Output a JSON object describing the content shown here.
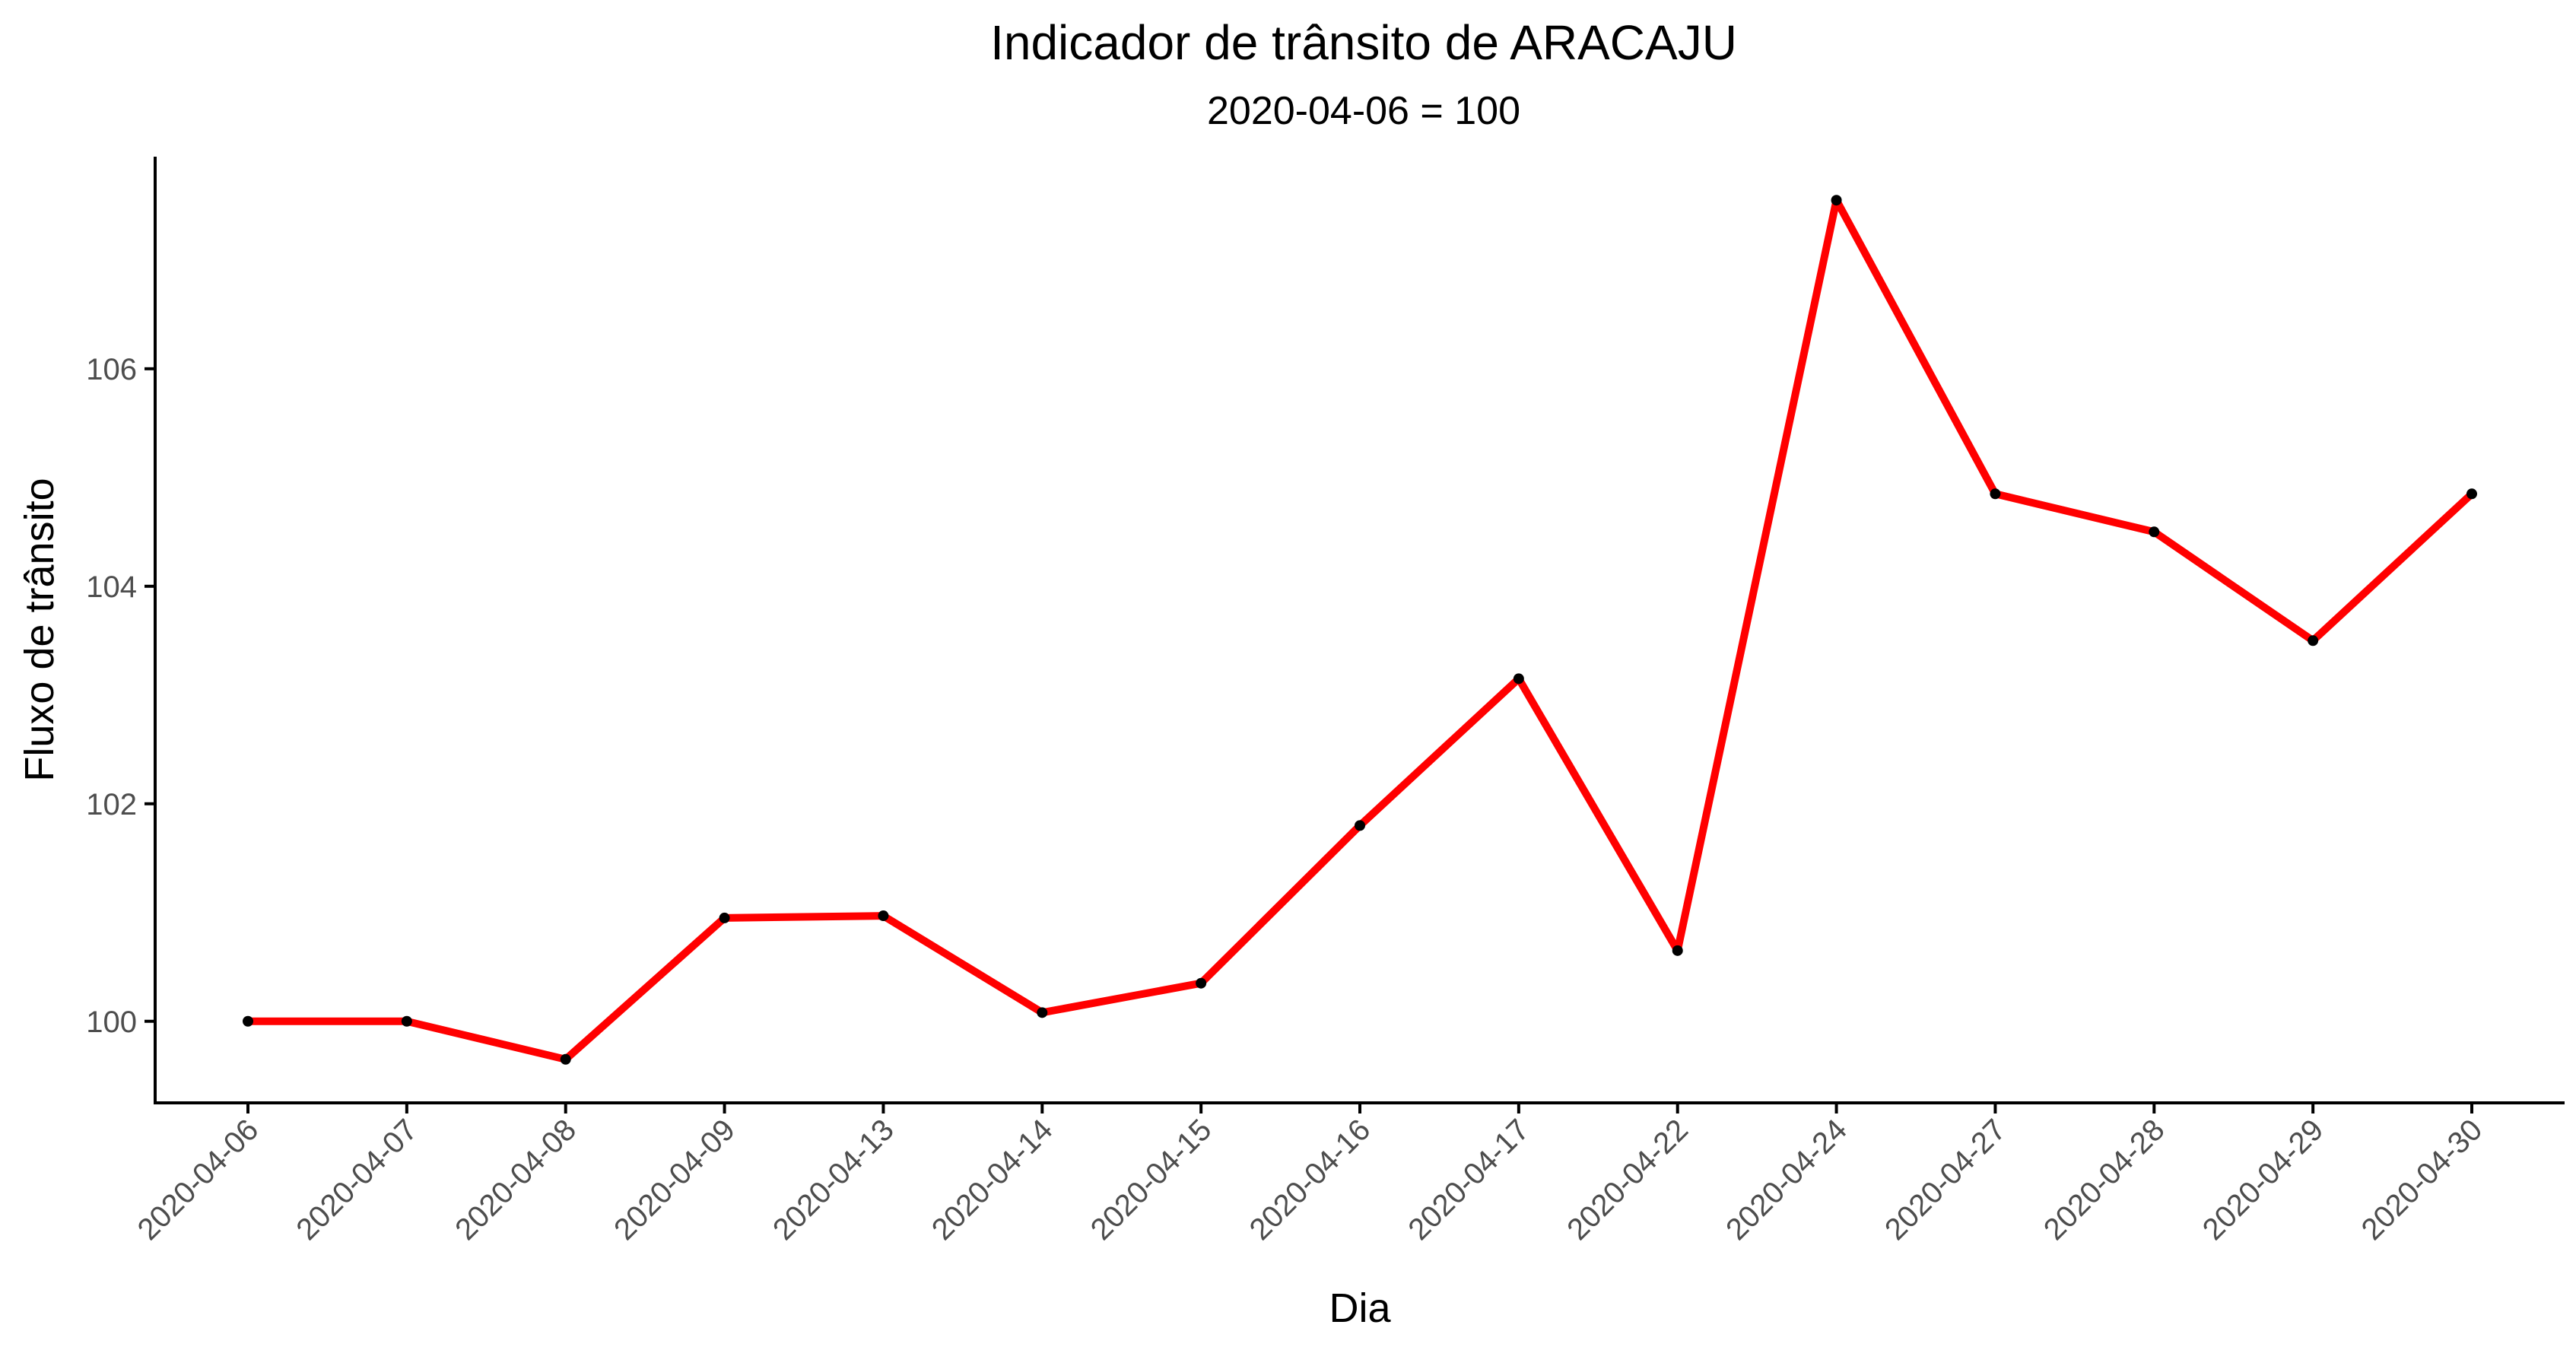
{
  "chart_data": {
    "type": "line",
    "title": "Indicador de trânsito de ARACAJU",
    "subtitle": "2020-04-06 = 100",
    "xlabel": "Dia",
    "ylabel": "Fluxo de trânsito",
    "categories": [
      "2020-04-06",
      "2020-04-07",
      "2020-04-08",
      "2020-04-09",
      "2020-04-13",
      "2020-04-14",
      "2020-04-15",
      "2020-04-16",
      "2020-04-17",
      "2020-04-22",
      "2020-04-24",
      "2020-04-27",
      "2020-04-28",
      "2020-04-29",
      "2020-04-30"
    ],
    "values": [
      100.0,
      100.0,
      99.65,
      100.95,
      100.97,
      100.08,
      100.35,
      101.8,
      103.15,
      100.65,
      107.55,
      104.85,
      104.5,
      103.5,
      104.85
    ],
    "yticks": [
      100,
      102,
      104,
      106
    ],
    "ylim": [
      99.25,
      107.95
    ],
    "line_color": "#ff0000",
    "point_color": "#000000",
    "grid": false,
    "legend": "none"
  }
}
